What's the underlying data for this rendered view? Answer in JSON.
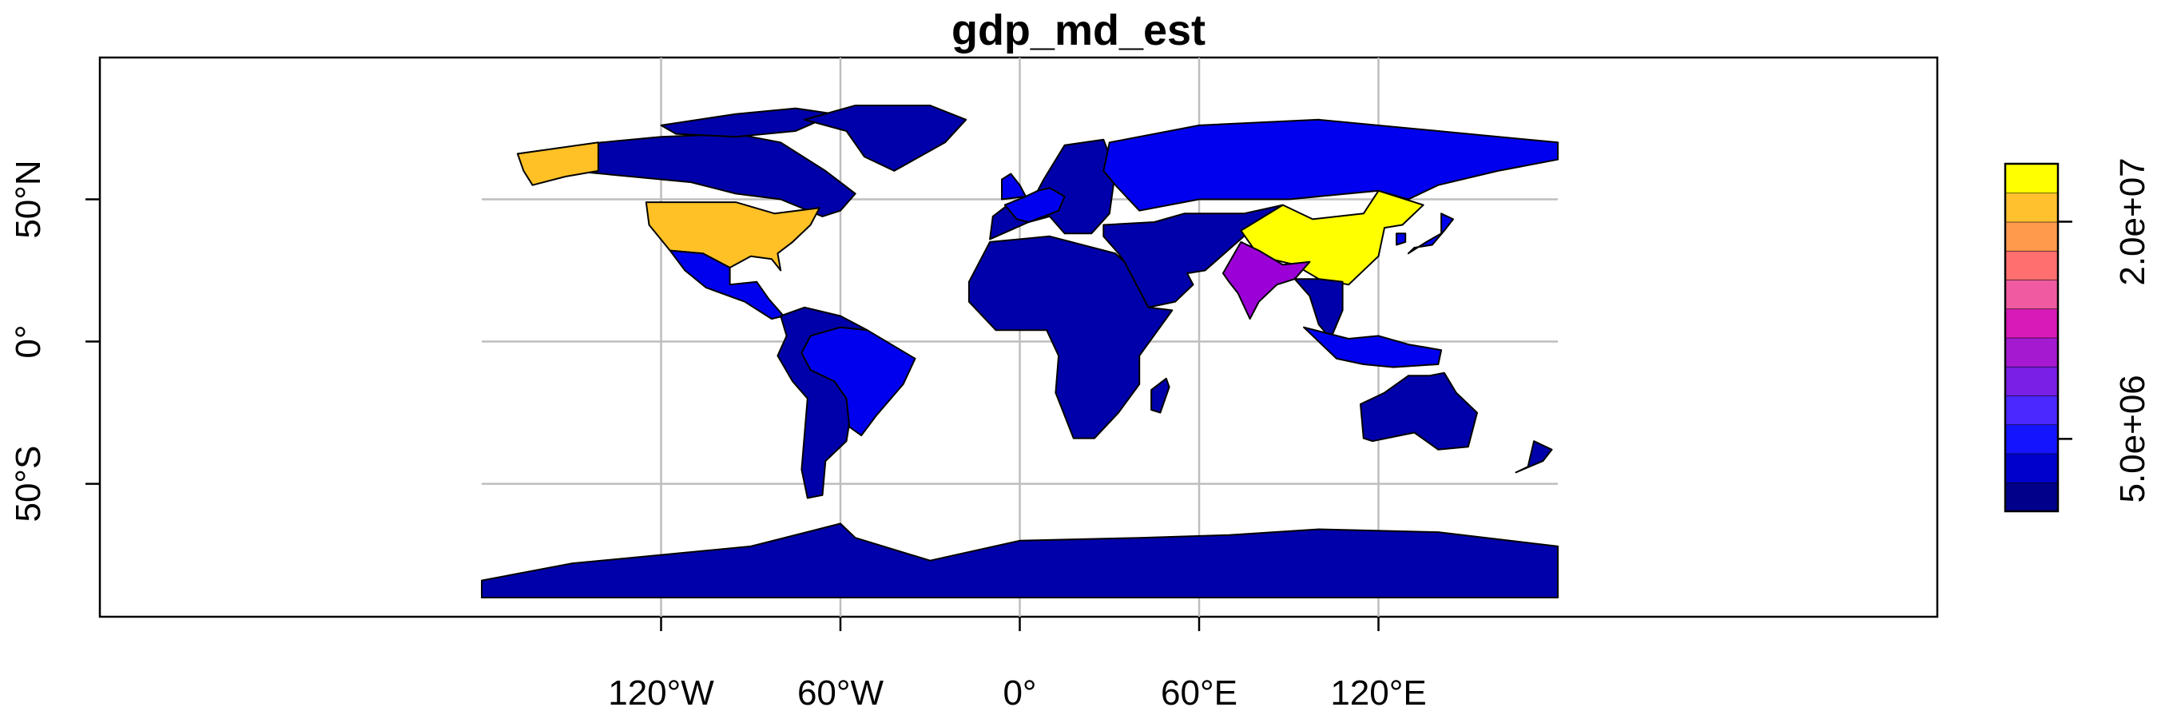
{
  "title": "gdp_md_est",
  "map": {
    "projection": "longitude-latitude",
    "background": "#ffffff",
    "graticule": {
      "longitudes": [
        -120,
        -60,
        0,
        60,
        120
      ],
      "latitudes": [
        -50,
        0,
        50
      ],
      "color": "#bebebe"
    },
    "x_ticks": [
      {
        "value": -120,
        "label": "120°W"
      },
      {
        "value": -60,
        "label": "60°W"
      },
      {
        "value": 0,
        "label": "0°"
      },
      {
        "value": 60,
        "label": "60°E"
      },
      {
        "value": 120,
        "label": "120°E"
      }
    ],
    "y_ticks": [
      {
        "value": -50,
        "label": "50°S"
      },
      {
        "value": 0,
        "label": "0°"
      },
      {
        "value": 50,
        "label": "50°N"
      }
    ],
    "regions": [
      {
        "name": "north-america-other",
        "fill": "#0000aa",
        "points": [
          [
            -168,
            66
          ],
          [
            -140,
            70
          ],
          [
            -120,
            72
          ],
          [
            -95,
            73
          ],
          [
            -80,
            70
          ],
          [
            -65,
            60
          ],
          [
            -55,
            52
          ],
          [
            -60,
            46
          ],
          [
            -66,
            44
          ],
          [
            -80,
            50
          ],
          [
            -95,
            52
          ],
          [
            -110,
            56
          ],
          [
            -130,
            58
          ],
          [
            -150,
            60
          ],
          [
            -165,
            62
          ]
        ]
      },
      {
        "name": "arctic-islands",
        "fill": "#0000aa",
        "points": [
          [
            -120,
            76
          ],
          [
            -95,
            80
          ],
          [
            -75,
            82
          ],
          [
            -62,
            80
          ],
          [
            -75,
            74
          ],
          [
            -95,
            72
          ],
          [
            -115,
            73
          ]
        ]
      },
      {
        "name": "greenland",
        "fill": "#0000aa",
        "points": [
          [
            -72,
            78
          ],
          [
            -55,
            83
          ],
          [
            -30,
            83
          ],
          [
            -18,
            78
          ],
          [
            -25,
            70
          ],
          [
            -42,
            60
          ],
          [
            -52,
            65
          ],
          [
            -58,
            74
          ]
        ]
      },
      {
        "name": "alaska",
        "fill": "#ffc125",
        "points": [
          [
            -168,
            66
          ],
          [
            -141,
            70
          ],
          [
            -141,
            60
          ],
          [
            -152,
            58
          ],
          [
            -163,
            55
          ],
          [
            -166,
            60
          ]
        ]
      },
      {
        "name": "usa",
        "fill": "#ffc125",
        "points": [
          [
            -125,
            49
          ],
          [
            -95,
            49
          ],
          [
            -82,
            45
          ],
          [
            -67,
            47
          ],
          [
            -70,
            41
          ],
          [
            -76,
            35
          ],
          [
            -81,
            31
          ],
          [
            -80,
            25
          ],
          [
            -83,
            29
          ],
          [
            -90,
            30
          ],
          [
            -97,
            26
          ],
          [
            -106,
            31
          ],
          [
            -117,
            32
          ],
          [
            -124,
            41
          ]
        ]
      },
      {
        "name": "mexico-central-america",
        "fill": "#0000ee",
        "points": [
          [
            -117,
            32
          ],
          [
            -106,
            31
          ],
          [
            -97,
            26
          ],
          [
            -97,
            20
          ],
          [
            -88,
            21
          ],
          [
            -84,
            15
          ],
          [
            -79,
            9
          ],
          [
            -83,
            8
          ],
          [
            -92,
            14
          ],
          [
            -105,
            19
          ],
          [
            -112,
            25
          ]
        ]
      },
      {
        "name": "south-america-other",
        "fill": "#0000aa",
        "points": [
          [
            -80,
            9
          ],
          [
            -72,
            12
          ],
          [
            -60,
            9
          ],
          [
            -51,
            4
          ],
          [
            -60,
            -2
          ],
          [
            -56,
            -22
          ],
          [
            -58,
            -35
          ],
          [
            -65,
            -42
          ],
          [
            -66,
            -54
          ],
          [
            -71,
            -55
          ],
          [
            -73,
            -45
          ],
          [
            -71,
            -20
          ],
          [
            -76,
            -14
          ],
          [
            -81,
            -5
          ],
          [
            -78,
            2
          ]
        ]
      },
      {
        "name": "brazil",
        "fill": "#0000ee",
        "points": [
          [
            -70,
            2
          ],
          [
            -60,
            5
          ],
          [
            -51,
            4
          ],
          [
            -35,
            -6
          ],
          [
            -39,
            -15
          ],
          [
            -48,
            -26
          ],
          [
            -53,
            -33
          ],
          [
            -57,
            -30
          ],
          [
            -58,
            -20
          ],
          [
            -62,
            -14
          ],
          [
            -70,
            -10
          ],
          [
            -73,
            -4
          ]
        ]
      },
      {
        "name": "europe",
        "fill": "#0000aa",
        "points": [
          [
            -10,
            36
          ],
          [
            -9,
            44
          ],
          [
            -4,
            48
          ],
          [
            5,
            51
          ],
          [
            8,
            57
          ],
          [
            15,
            69
          ],
          [
            28,
            71
          ],
          [
            32,
            60
          ],
          [
            30,
            45
          ],
          [
            24,
            38
          ],
          [
            15,
            38
          ],
          [
            10,
            44
          ],
          [
            3,
            42
          ]
        ]
      },
      {
        "name": "europe-large-economies",
        "fill": "#0000ee",
        "points": [
          [
            -5,
            48
          ],
          [
            -1,
            43
          ],
          [
            3,
            42
          ],
          [
            8,
            44
          ],
          [
            13,
            46
          ],
          [
            15,
            51
          ],
          [
            10,
            54
          ],
          [
            6,
            53
          ],
          [
            2,
            51
          ]
        ]
      },
      {
        "name": "uk",
        "fill": "#0000ee",
        "points": [
          [
            -6,
            50
          ],
          [
            2,
            51
          ],
          [
            0,
            55
          ],
          [
            -3,
            59
          ],
          [
            -6,
            57
          ]
        ]
      },
      {
        "name": "russia",
        "fill": "#0000ee",
        "points": [
          [
            30,
            70
          ],
          [
            60,
            76
          ],
          [
            100,
            78
          ],
          [
            140,
            74
          ],
          [
            180,
            70
          ],
          [
            180,
            64
          ],
          [
            160,
            60
          ],
          [
            140,
            55
          ],
          [
            130,
            50
          ],
          [
            120,
            53
          ],
          [
            90,
            50
          ],
          [
            60,
            50
          ],
          [
            40,
            46
          ],
          [
            32,
            55
          ],
          [
            28,
            60
          ]
        ]
      },
      {
        "name": "central-asia-middle-east",
        "fill": "#0000aa",
        "points": [
          [
            28,
            41
          ],
          [
            45,
            42
          ],
          [
            55,
            45
          ],
          [
            75,
            45
          ],
          [
            88,
            48
          ],
          [
            75,
            37
          ],
          [
            62,
            25
          ],
          [
            56,
            24
          ],
          [
            58,
            20
          ],
          [
            52,
            14
          ],
          [
            43,
            12
          ],
          [
            35,
            28
          ],
          [
            33,
            31
          ],
          [
            28,
            37
          ]
        ]
      },
      {
        "name": "china",
        "fill": "#ffff00",
        "points": [
          [
            74,
            39
          ],
          [
            88,
            48
          ],
          [
            98,
            43
          ],
          [
            115,
            45
          ],
          [
            120,
            53
          ],
          [
            135,
            48
          ],
          [
            128,
            41
          ],
          [
            122,
            40
          ],
          [
            120,
            30
          ],
          [
            110,
            20
          ],
          [
            100,
            22
          ],
          [
            92,
            27
          ],
          [
            80,
            30
          ]
        ]
      },
      {
        "name": "india",
        "fill": "#9b00d6",
        "points": [
          [
            68,
            24
          ],
          [
            74,
            35
          ],
          [
            80,
            32
          ],
          [
            88,
            27
          ],
          [
            97,
            28
          ],
          [
            92,
            22
          ],
          [
            86,
            20
          ],
          [
            80,
            14
          ],
          [
            77,
            8
          ],
          [
            73,
            17
          ],
          [
            70,
            21
          ]
        ]
      },
      {
        "name": "southeast-asia",
        "fill": "#0000aa",
        "points": [
          [
            92,
            22
          ],
          [
            100,
            22
          ],
          [
            108,
            21
          ],
          [
            108,
            11
          ],
          [
            104,
            1
          ],
          [
            100,
            6
          ],
          [
            97,
            16
          ]
        ]
      },
      {
        "name": "indonesia",
        "fill": "#0000ee",
        "points": [
          [
            95,
            5
          ],
          [
            106,
            -6
          ],
          [
            115,
            -8
          ],
          [
            125,
            -9
          ],
          [
            140,
            -8
          ],
          [
            141,
            -3
          ],
          [
            130,
            -1
          ],
          [
            120,
            2
          ],
          [
            110,
            1
          ]
        ]
      },
      {
        "name": "japan",
        "fill": "#0000ee",
        "points": [
          [
            130,
            31
          ],
          [
            136,
            35
          ],
          [
            141,
            38
          ],
          [
            141,
            45
          ],
          [
            145,
            43
          ],
          [
            142,
            39
          ],
          [
            138,
            34
          ],
          [
            132,
            33
          ]
        ]
      },
      {
        "name": "korea",
        "fill": "#0000ee",
        "points": [
          [
            126,
            34
          ],
          [
            129,
            35
          ],
          [
            129,
            38
          ],
          [
            126,
            38
          ]
        ]
      },
      {
        "name": "africa",
        "fill": "#0000aa",
        "points": [
          [
            -17,
            21
          ],
          [
            -10,
            35
          ],
          [
            10,
            37
          ],
          [
            32,
            31
          ],
          [
            35,
            28
          ],
          [
            43,
            12
          ],
          [
            51,
            11
          ],
          [
            40,
            -5
          ],
          [
            40,
            -15
          ],
          [
            33,
            -25
          ],
          [
            25,
            -34
          ],
          [
            18,
            -34
          ],
          [
            12,
            -18
          ],
          [
            13,
            -5
          ],
          [
            9,
            4
          ],
          [
            -8,
            4
          ],
          [
            -17,
            14
          ]
        ]
      },
      {
        "name": "madagascar",
        "fill": "#0000aa",
        "points": [
          [
            44,
            -17
          ],
          [
            49,
            -13
          ],
          [
            50,
            -16
          ],
          [
            47,
            -25
          ],
          [
            44,
            -24
          ]
        ]
      },
      {
        "name": "australia",
        "fill": "#0000aa",
        "points": [
          [
            114,
            -22
          ],
          [
            122,
            -18
          ],
          [
            130,
            -12
          ],
          [
            137,
            -12
          ],
          [
            142,
            -11
          ],
          [
            146,
            -18
          ],
          [
            153,
            -25
          ],
          [
            150,
            -37
          ],
          [
            140,
            -38
          ],
          [
            132,
            -32
          ],
          [
            118,
            -35
          ],
          [
            115,
            -34
          ]
        ]
      },
      {
        "name": "new-zealand",
        "fill": "#0000aa",
        "points": [
          [
            172,
            -35
          ],
          [
            178,
            -38
          ],
          [
            175,
            -42
          ],
          [
            166,
            -46
          ],
          [
            170,
            -44
          ]
        ]
      },
      {
        "name": "antarctica",
        "fill": "#0000aa",
        "points": [
          [
            -180,
            -90
          ],
          [
            -180,
            -84
          ],
          [
            -150,
            -78
          ],
          [
            -120,
            -75
          ],
          [
            -90,
            -72
          ],
          [
            -60,
            -64
          ],
          [
            -55,
            -69
          ],
          [
            -30,
            -77
          ],
          [
            0,
            -70
          ],
          [
            40,
            -69
          ],
          [
            70,
            -68
          ],
          [
            100,
            -66
          ],
          [
            140,
            -67
          ],
          [
            180,
            -72
          ],
          [
            180,
            -90
          ]
        ]
      }
    ]
  },
  "legend": {
    "min": 0,
    "max": 24000000,
    "colors": [
      "#00008b",
      "#0000cd",
      "#1414ff",
      "#4a28ff",
      "#7a1fe6",
      "#a51ad0",
      "#d81ab8",
      "#f05aa0",
      "#ff6f6f",
      "#ff9a4d",
      "#ffc12e",
      "#ffff00"
    ],
    "ticks": [
      {
        "value": 5000000,
        "label": "5.0e+06"
      },
      {
        "value": 20000000,
        "label": "2.0e+07"
      }
    ]
  }
}
